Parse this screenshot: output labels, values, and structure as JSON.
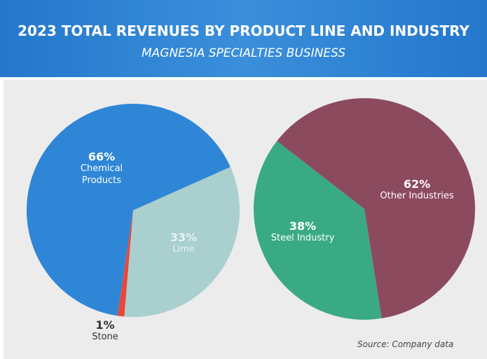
{
  "title": "2023 TOTAL REVENUES BY PRODUCT LINE AND INDUSTRY",
  "subtitle": "MAGNESIA SPECIALTIES BUSINESS",
  "source": "Source: Company data",
  "chart_data": [
    {
      "type": "pie",
      "categories": [
        "Chemical Products",
        "Lime",
        "Stone"
      ],
      "values": [
        66,
        33,
        1
      ],
      "value_labels": [
        "66%",
        "33%",
        "1%"
      ],
      "colors": [
        "#2f86d6",
        "#a9cfcf",
        "#e8473a"
      ]
    },
    {
      "type": "pie",
      "categories": [
        "Steel Industry",
        "Other Industries"
      ],
      "values": [
        38,
        62
      ],
      "value_labels": [
        "38%",
        "62%"
      ],
      "colors": [
        "#3aaa84",
        "#8c4a5e"
      ]
    }
  ]
}
